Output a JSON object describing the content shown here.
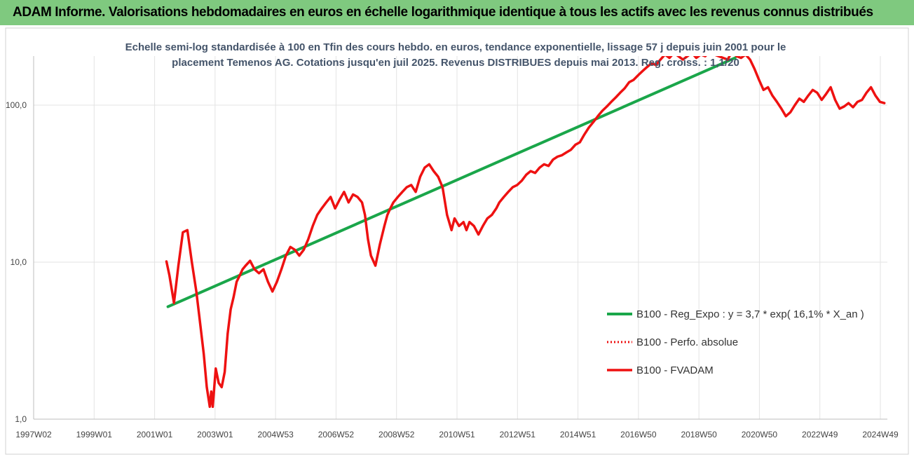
{
  "banner": {
    "title": "ADAM Informe. Valorisations hebdomadaires en euros en échelle logarithmique identique à tous les actifs avec les revenus connus distribués"
  },
  "colors": {
    "banner": "#7fc97f",
    "trend": "#1aa64a",
    "series": "#ee1111",
    "accent": "#f2b400"
  },
  "chart_data": {
    "type": "line",
    "title_lines": [
      "Echelle semi-log standardisée à 100 en Tfin des cours hebdo. en euros, tendance exponentielle, lissage 57 j depuis juin 2001 pour le",
      "placement Temenos AG. Cotations jusqu'en juil 2025. Revenus DISTRIBUES depuis mai 2013. Reg. croiss. : 1,1/20"
    ],
    "y_scale": "log",
    "ylim": [
      1,
      200
    ],
    "y_ticks": [
      1,
      10,
      100
    ],
    "y_tick_labels": [
      "1,0",
      "10,0",
      "100,0"
    ],
    "x_tick_labels": [
      "1997W02",
      "1999W01",
      "2001W01",
      "2003W01",
      "2004W53",
      "2006W52",
      "2008W52",
      "2010W51",
      "2012W51",
      "2014W51",
      "2016W50",
      "2018W50",
      "2020W50",
      "2022W49",
      "2024W49"
    ],
    "x_range": [
      1997.0,
      2025.6
    ],
    "grid": "vertical+horizontal",
    "legend_position": "right",
    "series": [
      {
        "name": "B100 - Reg_Expo : y = 3,7 * exp( 16,1% *  X_an )",
        "style": "solid-green",
        "x": [
          2001.5,
          2020.5
        ],
        "y": [
          5.2,
          200
        ]
      },
      {
        "name": "B100 - Perfo. absolue",
        "style": "dotted-red",
        "x": [],
        "y": []
      },
      {
        "name": "B100 - FVADAM",
        "style": "solid-red",
        "x": [
          2001.45,
          2001.55,
          2001.7,
          2001.85,
          2002.0,
          2002.15,
          2002.3,
          2002.45,
          2002.55,
          2002.7,
          2002.8,
          2002.9,
          2002.95,
          2003.0,
          2003.1,
          2003.2,
          2003.3,
          2003.4,
          2003.5,
          2003.6,
          2003.7,
          2003.8,
          2003.9,
          2004.0,
          2004.1,
          2004.25,
          2004.4,
          2004.55,
          2004.7,
          2004.85,
          2005.0,
          2005.15,
          2005.3,
          2005.45,
          2005.6,
          2005.75,
          2005.9,
          2006.05,
          2006.2,
          2006.35,
          2006.5,
          2006.65,
          2006.8,
          2006.95,
          2007.1,
          2007.25,
          2007.4,
          2007.55,
          2007.7,
          2007.85,
          2008.0,
          2008.1,
          2008.2,
          2008.3,
          2008.45,
          2008.6,
          2008.75,
          2008.85,
          2008.95,
          2009.05,
          2009.2,
          2009.35,
          2009.5,
          2009.65,
          2009.8,
          2009.95,
          2010.1,
          2010.25,
          2010.4,
          2010.55,
          2010.7,
          2010.85,
          2011.0,
          2011.1,
          2011.25,
          2011.4,
          2011.5,
          2011.6,
          2011.75,
          2011.9,
          2012.05,
          2012.2,
          2012.35,
          2012.5,
          2012.6,
          2012.75,
          2012.9,
          2013.05,
          2013.2,
          2013.35,
          2013.5,
          2013.65,
          2013.8,
          2013.95,
          2014.1,
          2014.25,
          2014.4,
          2014.55,
          2014.7,
          2014.85,
          2015.0,
          2015.15,
          2015.3,
          2015.45,
          2015.6,
          2015.75,
          2015.9,
          2016.05,
          2016.2,
          2016.35,
          2016.5,
          2016.65,
          2016.8,
          2016.95,
          2017.1,
          2017.25,
          2017.4,
          2017.55,
          2017.7,
          2017.85,
          2018.0,
          2018.15,
          2018.3,
          2018.45,
          2018.6,
          2018.75,
          2018.9,
          2019.05,
          2019.2,
          2019.35,
          2019.5,
          2019.65,
          2019.8,
          2019.95,
          2020.1,
          2020.25,
          2020.4,
          2020.55,
          2020.7,
          2020.85,
          2021.0,
          2021.15,
          2021.3,
          2021.45,
          2021.6,
          2021.75,
          2021.9,
          2022.05,
          2022.2,
          2022.35,
          2022.5,
          2022.65,
          2022.8,
          2022.95,
          2023.1,
          2023.25,
          2023.4,
          2023.55,
          2023.7,
          2023.85,
          2024.0,
          2024.15,
          2024.3,
          2024.45,
          2024.6,
          2024.75,
          2024.9,
          2025.05,
          2025.2,
          2025.35,
          2025.5
        ],
        "y": [
          10.1,
          8.2,
          5.5,
          9.5,
          15.5,
          16.0,
          10.0,
          6.5,
          4.5,
          2.6,
          1.6,
          1.2,
          1.5,
          1.2,
          2.1,
          1.7,
          1.6,
          2.0,
          3.5,
          5.0,
          6.0,
          7.5,
          8.2,
          9.0,
          9.5,
          10.2,
          9.0,
          8.5,
          9.0,
          7.5,
          6.5,
          7.5,
          9.0,
          11.0,
          12.5,
          12.0,
          11.0,
          12.0,
          14.0,
          17.0,
          20.0,
          22.0,
          24.0,
          26.0,
          22.0,
          25.0,
          28.0,
          24.0,
          27.0,
          26.0,
          24.0,
          20.0,
          14.0,
          11.0,
          9.5,
          13.0,
          17.0,
          20.0,
          22.0,
          24.0,
          26.0,
          28.0,
          30.0,
          31.0,
          28.0,
          35.0,
          40.0,
          42.0,
          38.0,
          35.0,
          30.0,
          20.0,
          16.0,
          19.0,
          17.0,
          18.0,
          16.0,
          18.0,
          17.0,
          15.0,
          17.0,
          19.0,
          20.0,
          22.0,
          24.0,
          26.0,
          28.0,
          30.0,
          31.0,
          33.0,
          36.0,
          38.0,
          37.0,
          40.0,
          42.0,
          41.0,
          45.0,
          47.0,
          48.0,
          50.0,
          52.0,
          56.0,
          58.0,
          65.0,
          72.0,
          78.0,
          85.0,
          92.0,
          98.0,
          105.0,
          112.0,
          120.0,
          128.0,
          140.0,
          145.0,
          155.0,
          165.0,
          175.0,
          185.0,
          180.0,
          195.0,
          210.0,
          200.0,
          215.0,
          205.0,
          195.0,
          205.0,
          215.0,
          200.0,
          210.0,
          205.0,
          220.0,
          210.0,
          205.0,
          200.0,
          195.0,
          220.0,
          205.0,
          200.0,
          210.0,
          195.0,
          170.0,
          145.0,
          125.0,
          130.0,
          115.0,
          105.0,
          95.0,
          85.0,
          90.0,
          100.0,
          110.0,
          105.0,
          115.0,
          125.0,
          120.0,
          108.0,
          118.0,
          130.0,
          108.0,
          95.0,
          98.0,
          103.0,
          97.0,
          105.0,
          108.0,
          120.0,
          130.0,
          115.0,
          105.0,
          103.0
        ]
      }
    ]
  }
}
